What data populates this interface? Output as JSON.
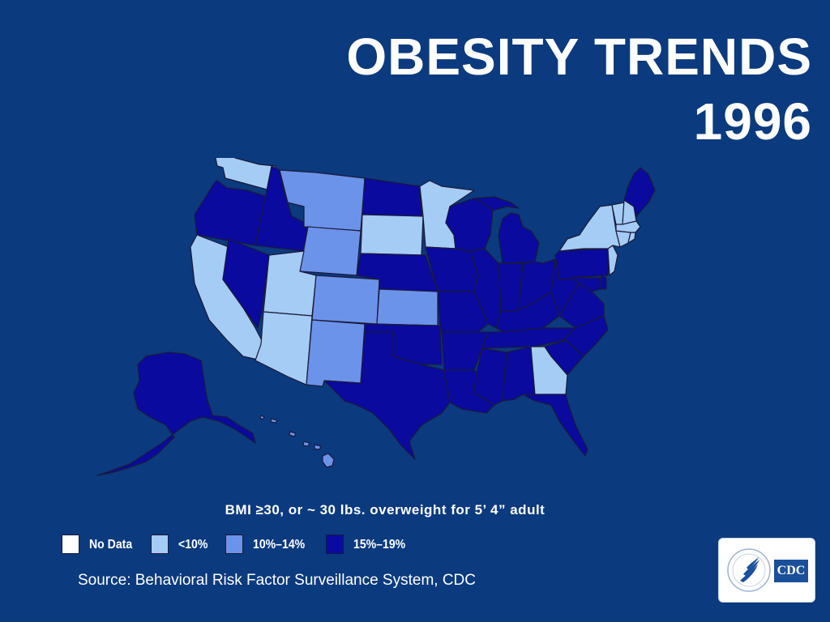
{
  "title": {
    "line1": "OBESITY TRENDS",
    "line2": "1996"
  },
  "subtitle": "BMI ≥30, or ~ 30 lbs. overweight for 5’ 4” adult",
  "legend": [
    {
      "label": "No Data",
      "color": "#ffffff"
    },
    {
      "label": "<10%",
      "color": "#a5ccf5"
    },
    {
      "label": "10%–14%",
      "color": "#6c93ea"
    },
    {
      "label": "15%–19%",
      "color": "#0a0a9e"
    }
  ],
  "source": "Source: Behavioral Risk Factor Surveillance System, CDC",
  "logo": {
    "text": "CDC"
  },
  "map": {
    "category_colors": {
      "lt10": "#a5ccf5",
      "10to14": "#6c93ea",
      "15to19": "#0a0a9e",
      "no_data": "#ffffff"
    },
    "states": [
      {
        "name": "Washington",
        "category": "lt10"
      },
      {
        "name": "Oregon",
        "category": "15to19"
      },
      {
        "name": "California",
        "category": "lt10"
      },
      {
        "name": "Nevada",
        "category": "15to19"
      },
      {
        "name": "Idaho",
        "category": "15to19"
      },
      {
        "name": "Montana",
        "category": "10to14"
      },
      {
        "name": "Wyoming",
        "category": "10to14"
      },
      {
        "name": "Utah",
        "category": "lt10"
      },
      {
        "name": "Arizona",
        "category": "lt10"
      },
      {
        "name": "Colorado",
        "category": "10to14"
      },
      {
        "name": "New Mexico",
        "category": "10to14"
      },
      {
        "name": "North Dakota",
        "category": "15to19"
      },
      {
        "name": "South Dakota",
        "category": "lt10"
      },
      {
        "name": "Nebraska",
        "category": "15to19"
      },
      {
        "name": "Kansas",
        "category": "10to14"
      },
      {
        "name": "Oklahoma",
        "category": "15to19"
      },
      {
        "name": "Texas",
        "category": "15to19"
      },
      {
        "name": "Minnesota",
        "category": "lt10"
      },
      {
        "name": "Iowa",
        "category": "15to19"
      },
      {
        "name": "Missouri",
        "category": "15to19"
      },
      {
        "name": "Arkansas",
        "category": "15to19"
      },
      {
        "name": "Louisiana",
        "category": "15to19"
      },
      {
        "name": "Wisconsin",
        "category": "15to19"
      },
      {
        "name": "Illinois",
        "category": "15to19"
      },
      {
        "name": "Michigan",
        "category": "15to19"
      },
      {
        "name": "Indiana",
        "category": "15to19"
      },
      {
        "name": "Ohio",
        "category": "15to19"
      },
      {
        "name": "Kentucky",
        "category": "15to19"
      },
      {
        "name": "Tennessee",
        "category": "15to19"
      },
      {
        "name": "Mississippi",
        "category": "15to19"
      },
      {
        "name": "Alabama",
        "category": "15to19"
      },
      {
        "name": "Georgia",
        "category": "lt10"
      },
      {
        "name": "Florida",
        "category": "15to19"
      },
      {
        "name": "South Carolina",
        "category": "15to19"
      },
      {
        "name": "North Carolina",
        "category": "15to19"
      },
      {
        "name": "Virginia",
        "category": "15to19"
      },
      {
        "name": "West Virginia",
        "category": "15to19"
      },
      {
        "name": "Pennsylvania",
        "category": "15to19"
      },
      {
        "name": "New York",
        "category": "lt10"
      },
      {
        "name": "New Jersey",
        "category": "lt10"
      },
      {
        "name": "Delaware",
        "category": "15to19"
      },
      {
        "name": "Maryland",
        "category": "15to19"
      },
      {
        "name": "Connecticut",
        "category": "lt10"
      },
      {
        "name": "Rhode Island",
        "category": "lt10"
      },
      {
        "name": "Massachusetts",
        "category": "lt10"
      },
      {
        "name": "Vermont",
        "category": "lt10"
      },
      {
        "name": "New Hampshire",
        "category": "lt10"
      },
      {
        "name": "Maine",
        "category": "15to19"
      },
      {
        "name": "Alaska",
        "category": "15to19"
      },
      {
        "name": "Hawaii",
        "category": "10to14"
      }
    ]
  }
}
